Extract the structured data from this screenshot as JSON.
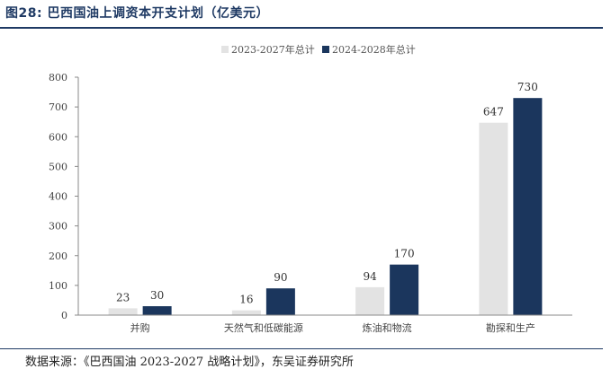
{
  "figure_title": "图28:  巴西国油上调资本开支计划（亿美元）",
  "source_note": "数据来源：《巴西国油 2023-2027 战略计划》，东吴证券研究所",
  "colors": {
    "series1": "#e3e3e3",
    "series2": "#1b365d",
    "title": "#1f3a64"
  },
  "chart_data": {
    "type": "bar",
    "title": "",
    "xlabel": "",
    "ylabel": "",
    "categories": [
      "并购",
      "天然气和低碳能源",
      "炼油和物流",
      "勘探和生产"
    ],
    "series": [
      {
        "name": "2023-2027年总计",
        "values": [
          23,
          16,
          94,
          647
        ]
      },
      {
        "name": "2024-2028年总计",
        "values": [
          30,
          90,
          170,
          730
        ]
      }
    ],
    "ylim": [
      0,
      800
    ],
    "yticks": [
      "0",
      "100",
      "200",
      "300",
      "400",
      "500",
      "600",
      "700",
      "800"
    ],
    "legend_position": "top-right",
    "grid": false
  }
}
